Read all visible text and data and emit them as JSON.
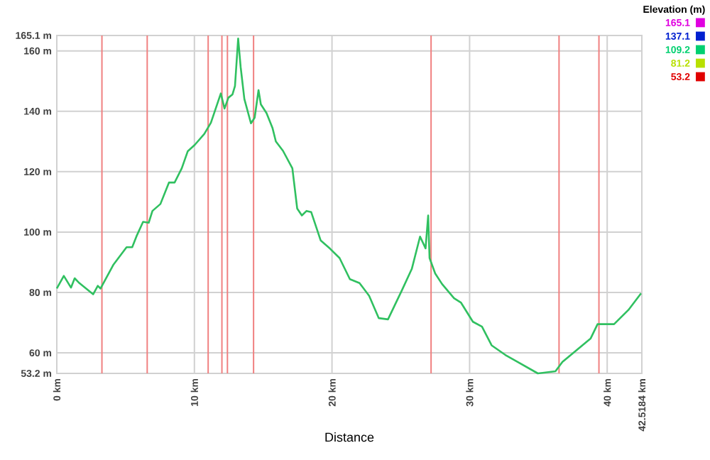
{
  "chart_data": {
    "type": "line",
    "xlabel": "Distance",
    "clabel": "Elevation (m)",
    "x": [
      0,
      0.51,
      1.03,
      1.3,
      1.64,
      2.64,
      2.98,
      3.18,
      4.1,
      5.07,
      5.48,
      5.82,
      6.27,
      6.68,
      6.95,
      7.53,
      8.15,
      8.56,
      9.08,
      9.52,
      10.03,
      10.72,
      11.2,
      11.92,
      12.19,
      12.47,
      12.77,
      12.95,
      13.18,
      13.36,
      13.63,
      14.11,
      14.38,
      14.66,
      14.83,
      15.24,
      15.68,
      15.92,
      16.44,
      17.12,
      17.47,
      17.81,
      18.15,
      18.49,
      19.18,
      19.86,
      20.55,
      21.3,
      22.0,
      22.7,
      23.4,
      24.07,
      25.1,
      25.8,
      26.4,
      26.8,
      26.99,
      27.09,
      27.5,
      28.0,
      28.87,
      29.38,
      30.24,
      30.9,
      31.6,
      32.6,
      34.96,
      36.24,
      36.75,
      38.8,
      39.3,
      40.5,
      41.54,
      42.46
    ],
    "values": [
      81.3,
      85.5,
      81.6,
      84.7,
      83.1,
      79.4,
      82.2,
      81.3,
      89.1,
      95.0,
      95.0,
      98.9,
      103.4,
      103.1,
      107.0,
      109.3,
      116.4,
      116.4,
      121.1,
      126.8,
      128.9,
      132.5,
      136.2,
      145.9,
      140.9,
      144.5,
      145.6,
      148.4,
      164.1,
      154.7,
      144.1,
      136.0,
      137.9,
      147.0,
      142.3,
      139.4,
      134.4,
      130.0,
      126.9,
      121.1,
      107.8,
      105.5,
      107.0,
      106.6,
      97.2,
      94.5,
      91.4,
      84.4,
      83.1,
      78.9,
      71.5,
      71.1,
      80.9,
      87.8,
      98.5,
      94.6,
      105.5,
      91.4,
      86.3,
      82.8,
      78.1,
      76.6,
      70.3,
      68.7,
      62.5,
      59.3,
      53.2,
      53.9,
      57.0,
      64.8,
      69.5,
      69.5,
      74.2,
      79.7
    ],
    "color": "#30c060",
    "xlim": [
      0,
      42.5184
    ],
    "ylim": [
      53.2,
      165.1
    ],
    "xticks": [
      {
        "value": 0,
        "label": "0 km"
      },
      {
        "value": 10,
        "label": "10 km"
      },
      {
        "value": 20,
        "label": "20 km"
      },
      {
        "value": 30,
        "label": "30 km"
      },
      {
        "value": 40,
        "label": "40 km"
      },
      {
        "value": 42.5184,
        "label": "42.5184 km"
      }
    ],
    "yticks": [
      {
        "value": 53.2,
        "label": "53.2 m"
      },
      {
        "value": 60,
        "label": "60 m"
      },
      {
        "value": 80,
        "label": "80 m"
      },
      {
        "value": 100,
        "label": "100 m"
      },
      {
        "value": 120,
        "label": "120 m"
      },
      {
        "value": 140,
        "label": "140 m"
      },
      {
        "value": 160,
        "label": "160 m"
      },
      {
        "value": 165.1,
        "label": "165.1 m"
      }
    ],
    "clim": [
      53.2,
      165.1
    ],
    "cticks": [
      {
        "value": 53.2,
        "label": "53.2"
      },
      {
        "value": 81.2,
        "label": "81.2"
      },
      {
        "value": 109.2,
        "label": "109.2"
      },
      {
        "value": 137.1,
        "label": "137.1"
      },
      {
        "value": 165.1,
        "label": "165.1"
      }
    ],
    "grid": true,
    "ref_lines": [
      {
        "axis": "x",
        "value": 3.28,
        "color": "#f08080"
      },
      {
        "axis": "x",
        "value": 6.57,
        "color": "#f08080"
      },
      {
        "axis": "x",
        "value": 11.0,
        "color": "#f08080"
      },
      {
        "axis": "x",
        "value": 12.0,
        "color": "#f08080"
      },
      {
        "axis": "x",
        "value": 12.4,
        "color": "#f08080"
      },
      {
        "axis": "x",
        "value": 14.3,
        "color": "#f08080"
      },
      {
        "axis": "x",
        "value": 27.2,
        "color": "#f08080"
      },
      {
        "axis": "x",
        "value": 36.5,
        "color": "#f08080"
      },
      {
        "axis": "x",
        "value": 39.4,
        "color": "#f08080"
      }
    ]
  }
}
